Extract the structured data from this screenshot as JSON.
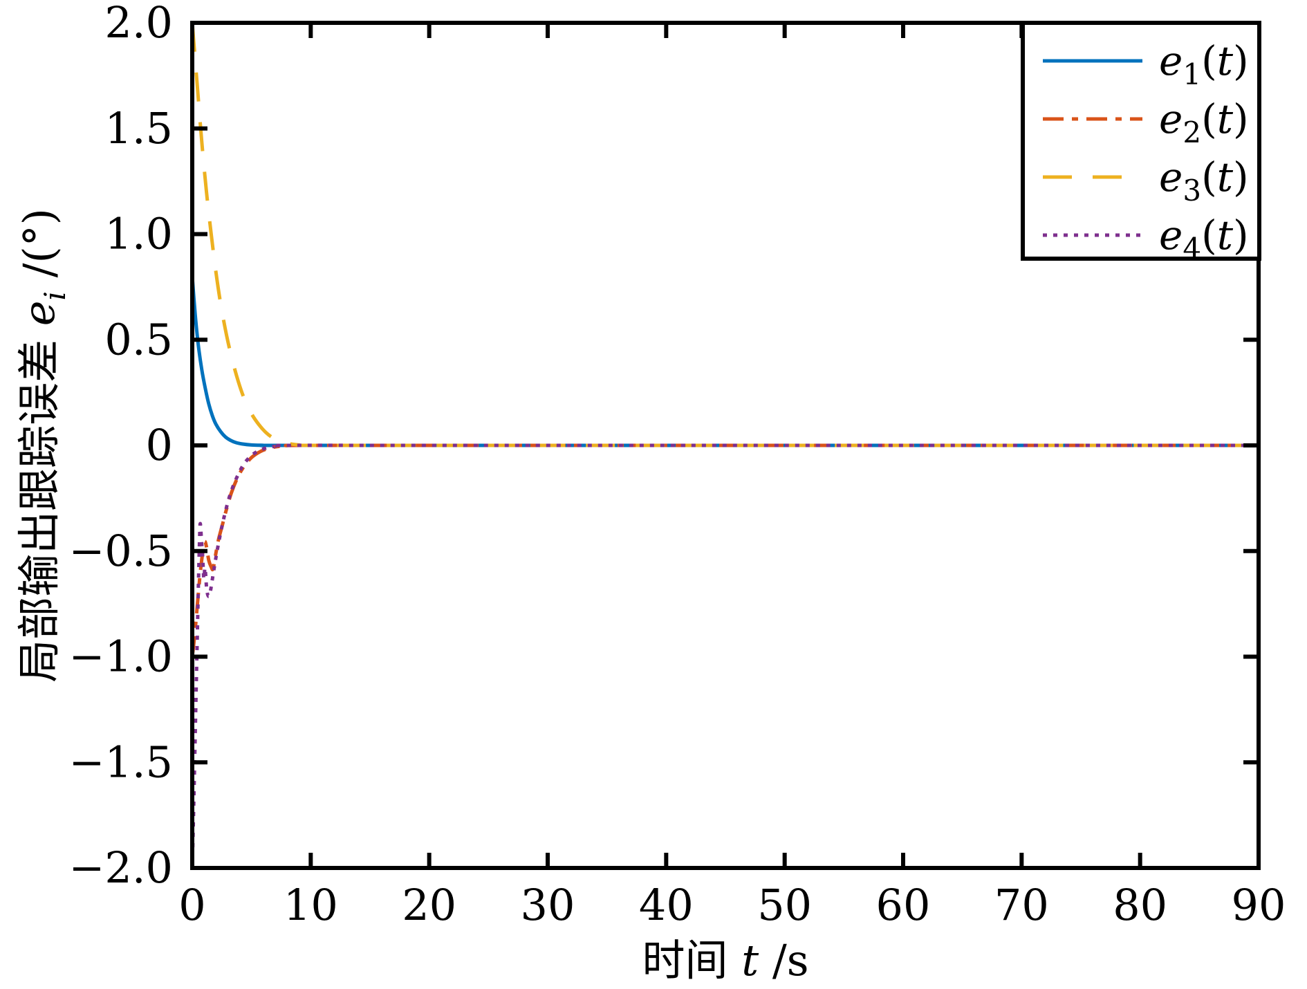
{
  "figure": {
    "background": "#ffffff",
    "axis_color": "#000000"
  },
  "chart_data": {
    "type": "line",
    "title": "",
    "xlabel_text": "时间 t /s",
    "ylabel_text": "局部输出跟踪误差 e_i /(°)",
    "xlabel_parts": [
      {
        "text": "时间 ",
        "italic": false
      },
      {
        "text": "t",
        "italic": true
      },
      {
        "text": " /s",
        "italic": false
      }
    ],
    "ylabel_parts": [
      {
        "text": "局部输出跟踪误差 ",
        "italic": false
      },
      {
        "text": "e",
        "italic": true
      },
      {
        "text": "i",
        "italic": true,
        "sub": true
      },
      {
        "text": " /(°)",
        "italic": false
      }
    ],
    "xlim": [
      0,
      90
    ],
    "ylim": [
      -2,
      2
    ],
    "grid": false,
    "xticks": {
      "values": [
        0,
        10,
        20,
        30,
        40,
        50,
        60,
        70,
        80,
        90
      ],
      "labels": [
        "0",
        "10",
        "20",
        "30",
        "40",
        "50",
        "60",
        "70",
        "80",
        "90"
      ]
    },
    "yticks": {
      "values": [
        2,
        1.5,
        1,
        0.5,
        0,
        -0.5,
        -1,
        -1.5,
        -2
      ],
      "labels": [
        "2.0",
        "1.5",
        "1.0",
        "0.5",
        "0",
        "−0.5",
        "−1.0",
        "−1.5",
        "−2.0"
      ]
    },
    "legend": {
      "position": "top-right",
      "entries": [
        "e_1(t)",
        "e_2(t)",
        "e_3(t)",
        "e_4(t)"
      ]
    },
    "series": [
      {
        "name": "e_1(t)",
        "color": "#0072BD",
        "style": "solid",
        "points": [
          [
            0,
            0.8
          ],
          [
            0.25,
            0.62
          ],
          [
            0.5,
            0.48
          ],
          [
            0.8,
            0.36
          ],
          [
            1.1,
            0.27
          ],
          [
            1.4,
            0.195
          ],
          [
            1.7,
            0.14
          ],
          [
            2.0,
            0.1
          ],
          [
            2.4,
            0.065
          ],
          [
            2.8,
            0.04
          ],
          [
            3.2,
            0.025
          ],
          [
            3.7,
            0.013
          ],
          [
            4.2,
            0.007
          ],
          [
            5,
            0.002
          ],
          [
            6,
            0.0005
          ],
          [
            7,
            0
          ],
          [
            20,
            0
          ],
          [
            50,
            0
          ],
          [
            90,
            0
          ]
        ]
      },
      {
        "name": "e_2(t)",
        "color": "#D95319",
        "style": "dash-dot",
        "points": [
          [
            0,
            -1.0
          ],
          [
            0.15,
            -0.93
          ],
          [
            0.3,
            -0.84
          ],
          [
            0.5,
            -0.71
          ],
          [
            0.7,
            -0.59
          ],
          [
            0.9,
            -0.5
          ],
          [
            1.05,
            -0.455
          ],
          [
            1.2,
            -0.48
          ],
          [
            1.4,
            -0.545
          ],
          [
            1.6,
            -0.575
          ],
          [
            1.75,
            -0.585
          ],
          [
            1.95,
            -0.525
          ],
          [
            2.2,
            -0.45
          ],
          [
            2.55,
            -0.375
          ],
          [
            2.9,
            -0.3
          ],
          [
            3.3,
            -0.225
          ],
          [
            3.8,
            -0.155
          ],
          [
            4.3,
            -0.105
          ],
          [
            4.9,
            -0.063
          ],
          [
            5.5,
            -0.037
          ],
          [
            6.2,
            -0.018
          ],
          [
            7,
            -0.007
          ],
          [
            8,
            -0.002
          ],
          [
            9,
            0
          ],
          [
            20,
            0
          ],
          [
            50,
            0
          ],
          [
            90,
            0
          ]
        ]
      },
      {
        "name": "e_3(t)",
        "color": "#EDB120",
        "style": "dashed",
        "points": [
          [
            0,
            2.0
          ],
          [
            0.4,
            1.72
          ],
          [
            0.8,
            1.44
          ],
          [
            1.2,
            1.2
          ],
          [
            1.6,
            1.0
          ],
          [
            2.0,
            0.82
          ],
          [
            2.4,
            0.67
          ],
          [
            2.9,
            0.52
          ],
          [
            3.4,
            0.4
          ],
          [
            3.9,
            0.3
          ],
          [
            4.4,
            0.22
          ],
          [
            5.0,
            0.15
          ],
          [
            5.6,
            0.1
          ],
          [
            6.2,
            0.062
          ],
          [
            6.8,
            0.036
          ],
          [
            7.4,
            0.02
          ],
          [
            8.0,
            0.01
          ],
          [
            9,
            0.002
          ],
          [
            10,
            0
          ],
          [
            20,
            0
          ],
          [
            50,
            0
          ],
          [
            90,
            0
          ]
        ]
      },
      {
        "name": "e_4(t)",
        "color": "#7E2F8E",
        "style": "dotted",
        "points": [
          [
            0,
            -2.0
          ],
          [
            0.12,
            -1.72
          ],
          [
            0.22,
            -1.45
          ],
          [
            0.32,
            -1.18
          ],
          [
            0.42,
            -0.92
          ],
          [
            0.52,
            -0.66
          ],
          [
            0.62,
            -0.44
          ],
          [
            0.68,
            -0.37
          ],
          [
            0.78,
            -0.45
          ],
          [
            0.88,
            -0.53
          ],
          [
            0.98,
            -0.63
          ],
          [
            1.08,
            -0.58
          ],
          [
            1.22,
            -0.68
          ],
          [
            1.38,
            -0.715
          ],
          [
            1.55,
            -0.685
          ],
          [
            1.75,
            -0.615
          ],
          [
            2.0,
            -0.53
          ],
          [
            2.3,
            -0.44
          ],
          [
            2.6,
            -0.36
          ],
          [
            3.0,
            -0.27
          ],
          [
            3.4,
            -0.2
          ],
          [
            3.9,
            -0.135
          ],
          [
            4.4,
            -0.085
          ],
          [
            5.0,
            -0.048
          ],
          [
            5.6,
            -0.026
          ],
          [
            6.3,
            -0.011
          ],
          [
            7.0,
            -0.004
          ],
          [
            8,
            0
          ],
          [
            20,
            0
          ],
          [
            50,
            0
          ],
          [
            90,
            0
          ]
        ]
      }
    ]
  }
}
